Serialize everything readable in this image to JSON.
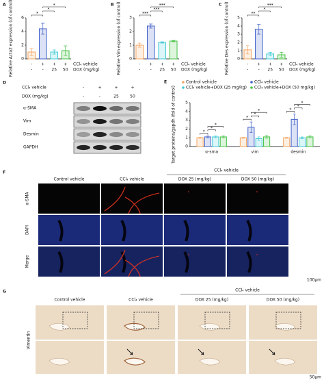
{
  "chart_data": [
    {
      "type": "bar",
      "panel": "A",
      "y_label": "Relative Acta2 expression (of control)",
      "values": [
        1.0,
        4.4,
        1.0,
        1.2
      ],
      "errors": [
        0.5,
        0.8,
        0.3,
        0.7
      ],
      "colors": [
        "#f4a460",
        "#3f5fc8",
        "#3ec9d6",
        "#44c244"
      ],
      "ylim": [
        0,
        6
      ],
      "yticks": [
        0,
        2,
        4,
        6
      ],
      "significance": [
        "*",
        "*",
        "*"
      ],
      "conditions": [
        {
          "label": "CCl₄ vehicle",
          "cells": [
            "-",
            "+",
            "+",
            "+"
          ]
        },
        {
          "label": "DOX (mg/kg)",
          "cells": [
            "-",
            "-",
            "25",
            "50"
          ]
        }
      ]
    },
    {
      "type": "bar",
      "panel": "B",
      "y_label": "Relative Vim expression (of control)",
      "values": [
        1.0,
        2.4,
        1.2,
        1.3
      ],
      "errors": [
        0.15,
        0.15,
        0.05,
        0.05
      ],
      "colors": [
        "#f4a460",
        "#3f5fc8",
        "#3ec9d6",
        "#44c244"
      ],
      "ylim": [
        0,
        3
      ],
      "yticks": [
        0,
        1,
        2,
        3
      ],
      "significance": [
        "***",
        "***",
        "***"
      ],
      "conditions": [
        {
          "label": "CCl₄ vehicle",
          "cells": [
            "-",
            "+",
            "+",
            "+"
          ]
        },
        {
          "label": "DOX (mg/kg)",
          "cells": [
            "-",
            "-",
            "25",
            "50"
          ]
        }
      ]
    },
    {
      "type": "bar",
      "panel": "C",
      "y_label": "Relative Des expression (of control)",
      "values": [
        1.1,
        3.6,
        0.6,
        0.5
      ],
      "errors": [
        0.5,
        0.6,
        0.2,
        0.3
      ],
      "colors": [
        "#f4a460",
        "#3f5fc8",
        "#3ec9d6",
        "#44c244"
      ],
      "ylim": [
        0,
        5
      ],
      "yticks": [
        0,
        1,
        2,
        3,
        4,
        5
      ],
      "significance": [
        "**",
        "*",
        "***"
      ],
      "conditions": [
        {
          "label": "CCl₄ vehicle",
          "cells": [
            "-",
            "+",
            "+",
            "+"
          ]
        },
        {
          "label": "DOX (mg/kg)",
          "cells": [
            "-",
            "-",
            "25",
            "50"
          ]
        }
      ]
    },
    {
      "type": "grouped_bar",
      "panel": "E",
      "y_label": "Target proteins/gapdh (fold of control)",
      "categories": [
        "α-sma",
        "vim",
        "desmin"
      ],
      "ylim": [
        0,
        5
      ],
      "yticks": [
        0,
        1,
        2,
        3,
        4,
        5
      ],
      "series": [
        {
          "name": "Control vehicle",
          "color": "#f4a460",
          "values": [
            1.0,
            1.0,
            1.0
          ],
          "errors": [
            0.05,
            0.05,
            0.05
          ]
        },
        {
          "name": "CCl₄ vehicle",
          "color": "#3f5fc8",
          "values": [
            1.1,
            2.2,
            3.1
          ],
          "errors": [
            0.1,
            0.6,
            0.6
          ]
        },
        {
          "name": "CCl₄ vehicle+DOX (25 mg/kg)",
          "color": "#3ec9d6",
          "values": [
            1.1,
            0.9,
            1.0
          ],
          "errors": [
            0.1,
            0.2,
            0.1
          ]
        },
        {
          "name": "CCl₄ vehicle+DOX (50 mg/kg)",
          "color": "#44c244",
          "values": [
            1.1,
            1.1,
            1.1
          ],
          "errors": [
            0.1,
            0.15,
            0.1
          ]
        }
      ],
      "significance": [
        [
          "*",
          "*",
          "*"
        ],
        [
          "*",
          "*",
          "*"
        ],
        [
          "*",
          "*",
          "*"
        ]
      ]
    }
  ],
  "blot": {
    "panel": "D",
    "conditions": [
      {
        "label": "CCl₄ vehicle",
        "cells": [
          "-",
          "+",
          "+",
          "+"
        ]
      },
      {
        "label": "DOX (mg/kg)",
        "cells": [
          "-",
          "-",
          "25",
          "50"
        ]
      }
    ],
    "bands": [
      "α-SMA",
      "Vim",
      "Desmin",
      "GAPDH"
    ]
  },
  "immunofluorescence": {
    "panel": "F",
    "group": "CCl₄ vehicle",
    "columns": [
      "Control vehicle",
      "CCl₄ vehicle",
      "DOX 25 (mg/kg)",
      "DOX 50 (mg/kg)"
    ],
    "rows": [
      "α-SMA",
      "DAPI",
      "Merge"
    ],
    "scale": "100μm"
  },
  "ihc": {
    "panel": "G",
    "group": "CCl₄ vehicle",
    "columns": [
      "Control vehicle",
      "CCl₄ vehicle",
      "DOX 25 (mg/kg)",
      "DOX 50 (mg/kg)"
    ],
    "row": "Vimentin",
    "scale": "50μm"
  }
}
